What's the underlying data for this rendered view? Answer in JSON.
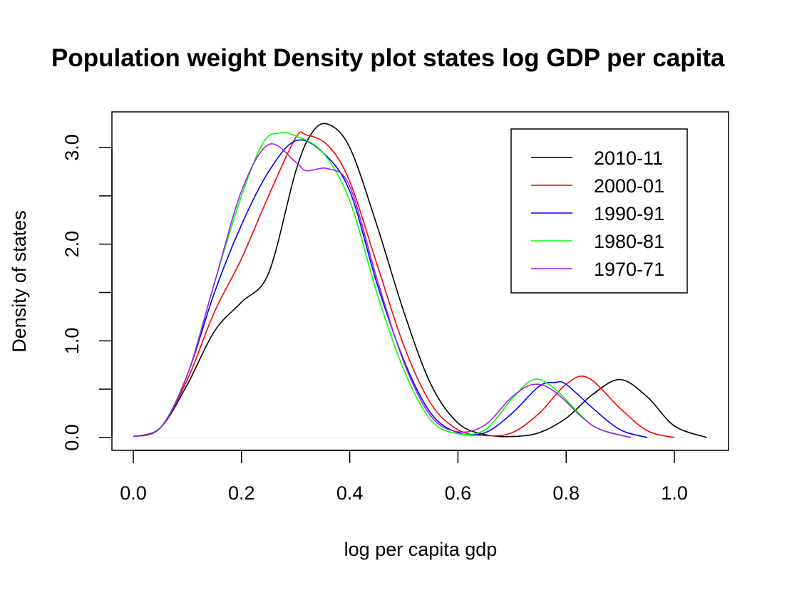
{
  "chart_data": {
    "type": "line",
    "title": "Population weight Density plot states log GDP per capita",
    "xlabel": "log per capita gdp",
    "ylabel": "Density of states",
    "xlim": [
      0,
      1.06
    ],
    "ylim": [
      0,
      3.25
    ],
    "xticks": [
      0.0,
      0.2,
      0.4,
      0.6,
      0.8,
      1.0
    ],
    "xtick_labels": [
      "0.0",
      "0.2",
      "0.4",
      "0.6",
      "0.8",
      "1.0"
    ],
    "yticks": [
      0.0,
      0.5,
      1.0,
      1.5,
      2.0,
      2.5,
      3.0
    ],
    "ytick_labels": [
      "0.0",
      "",
      "1.0",
      "",
      "2.0",
      "",
      "3.0"
    ],
    "legend_position": "top-right",
    "grid": false,
    "series": [
      {
        "name": "2010-11",
        "color": "#000000",
        "x": [
          0.0,
          0.05,
          0.1,
          0.15,
          0.2,
          0.25,
          0.3,
          0.33,
          0.36,
          0.4,
          0.45,
          0.5,
          0.55,
          0.6,
          0.65,
          0.7,
          0.75,
          0.8,
          0.85,
          0.9,
          0.95,
          1.0,
          1.06
        ],
        "y": [
          0.01,
          0.1,
          0.55,
          1.1,
          1.4,
          1.7,
          2.75,
          3.15,
          3.24,
          3.0,
          2.2,
          1.3,
          0.55,
          0.15,
          0.03,
          0.01,
          0.05,
          0.2,
          0.45,
          0.6,
          0.42,
          0.12,
          0.0
        ]
      },
      {
        "name": "2000-01",
        "color": "#ff0000",
        "x": [
          0.0,
          0.05,
          0.1,
          0.15,
          0.2,
          0.25,
          0.3,
          0.32,
          0.36,
          0.4,
          0.45,
          0.5,
          0.55,
          0.6,
          0.65,
          0.7,
          0.75,
          0.8,
          0.84,
          0.9,
          0.95,
          1.0
        ],
        "y": [
          0.01,
          0.1,
          0.6,
          1.3,
          1.85,
          2.5,
          3.1,
          3.13,
          3.02,
          2.65,
          1.8,
          0.95,
          0.35,
          0.08,
          0.02,
          0.05,
          0.25,
          0.55,
          0.62,
          0.3,
          0.07,
          0.0
        ]
      },
      {
        "name": "1990-91",
        "color": "#0000ff",
        "x": [
          0.0,
          0.05,
          0.1,
          0.15,
          0.2,
          0.25,
          0.3,
          0.35,
          0.4,
          0.45,
          0.5,
          0.55,
          0.6,
          0.65,
          0.7,
          0.75,
          0.78,
          0.8,
          0.85,
          0.9,
          0.95
        ],
        "y": [
          0.01,
          0.1,
          0.65,
          1.5,
          2.2,
          2.75,
          3.07,
          2.95,
          2.55,
          1.6,
          0.8,
          0.25,
          0.05,
          0.05,
          0.25,
          0.53,
          0.57,
          0.55,
          0.3,
          0.08,
          0.0
        ]
      },
      {
        "name": "1980-81",
        "color": "#00ff00",
        "x": [
          0.0,
          0.05,
          0.1,
          0.15,
          0.2,
          0.24,
          0.27,
          0.3,
          0.35,
          0.4,
          0.45,
          0.5,
          0.55,
          0.6,
          0.65,
          0.7,
          0.74,
          0.78,
          0.85,
          0.92
        ],
        "y": [
          0.01,
          0.1,
          0.65,
          1.6,
          2.5,
          3.05,
          3.15,
          3.12,
          2.95,
          2.45,
          1.5,
          0.7,
          0.18,
          0.04,
          0.08,
          0.4,
          0.6,
          0.5,
          0.12,
          0.0
        ]
      },
      {
        "name": "1970-71",
        "color": "#a020f0",
        "x": [
          0.0,
          0.05,
          0.1,
          0.15,
          0.2,
          0.25,
          0.3,
          0.32,
          0.36,
          0.4,
          0.45,
          0.5,
          0.55,
          0.6,
          0.65,
          0.7,
          0.74,
          0.78,
          0.85,
          0.92
        ],
        "y": [
          0.01,
          0.1,
          0.65,
          1.6,
          2.55,
          3.03,
          2.85,
          2.76,
          2.78,
          2.6,
          1.65,
          0.78,
          0.22,
          0.06,
          0.13,
          0.42,
          0.55,
          0.47,
          0.12,
          0.0
        ]
      }
    ]
  }
}
